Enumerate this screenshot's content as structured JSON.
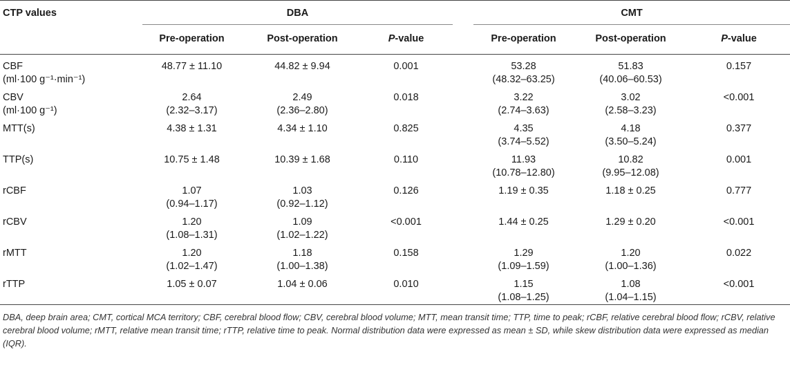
{
  "table": {
    "stub_header": "CTP values",
    "groups": [
      "DBA",
      "CMT"
    ],
    "subheaders": {
      "pre": "Pre-operation",
      "post": "Post-operation",
      "p_italic": "P",
      "p_rest": "-value"
    },
    "rows": [
      {
        "label": "CBF",
        "label2": "(ml·100 g⁻¹·min⁻¹)",
        "dba_pre": "48.77 ± 11.10",
        "dba_pre2": "",
        "dba_post": "44.82 ± 9.94",
        "dba_post2": "",
        "dba_p": "0.001",
        "cmt_pre": "53.28",
        "cmt_pre2": "(48.32–63.25)",
        "cmt_post": "51.83",
        "cmt_post2": "(40.06–60.53)",
        "cmt_p": "0.157"
      },
      {
        "label": "CBV",
        "label2": "(ml·100 g⁻¹)",
        "dba_pre": "2.64",
        "dba_pre2": "(2.32–3.17)",
        "dba_post": "2.49",
        "dba_post2": "(2.36–2.80)",
        "dba_p": "0.018",
        "cmt_pre": "3.22",
        "cmt_pre2": "(2.74–3.63)",
        "cmt_post": "3.02",
        "cmt_post2": "(2.58–3.23)",
        "cmt_p": "<0.001"
      },
      {
        "label": "MTT(s)",
        "label2": "",
        "dba_pre": "4.38 ± 1.31",
        "dba_pre2": "",
        "dba_post": "4.34 ± 1.10",
        "dba_post2": "",
        "dba_p": "0.825",
        "cmt_pre": "4.35",
        "cmt_pre2": "(3.74–5.52)",
        "cmt_post": "4.18",
        "cmt_post2": "(3.50–5.24)",
        "cmt_p": "0.377"
      },
      {
        "label": "TTP(s)",
        "label2": "",
        "dba_pre": "10.75 ± 1.48",
        "dba_pre2": "",
        "dba_post": "10.39 ± 1.68",
        "dba_post2": "",
        "dba_p": "0.110",
        "cmt_pre": "11.93",
        "cmt_pre2": "(10.78–12.80)",
        "cmt_post": "10.82",
        "cmt_post2": "(9.95–12.08)",
        "cmt_p": "0.001"
      },
      {
        "label": "rCBF",
        "label2": "",
        "dba_pre": "1.07",
        "dba_pre2": "(0.94–1.17)",
        "dba_post": "1.03",
        "dba_post2": "(0.92–1.12)",
        "dba_p": "0.126",
        "cmt_pre": "1.19 ± 0.35",
        "cmt_pre2": "",
        "cmt_post": "1.18 ± 0.25",
        "cmt_post2": "",
        "cmt_p": "0.777"
      },
      {
        "label": "rCBV",
        "label2": "",
        "dba_pre": "1.20",
        "dba_pre2": "(1.08–1.31)",
        "dba_post": "1.09",
        "dba_post2": "(1.02–1.22)",
        "dba_p": "<0.001",
        "cmt_pre": "1.44 ± 0.25",
        "cmt_pre2": "",
        "cmt_post": "1.29 ± 0.20",
        "cmt_post2": "",
        "cmt_p": "<0.001"
      },
      {
        "label": "rMTT",
        "label2": "",
        "dba_pre": "1.20",
        "dba_pre2": "(1.02–1.47)",
        "dba_post": "1.18",
        "dba_post2": "(1.00–1.38)",
        "dba_p": "0.158",
        "cmt_pre": "1.29",
        "cmt_pre2": "(1.09–1.59)",
        "cmt_post": "1.20",
        "cmt_post2": "(1.00–1.36)",
        "cmt_p": "0.022"
      },
      {
        "label": "rTTP",
        "label2": "",
        "dba_pre": "1.05 ± 0.07",
        "dba_pre2": "",
        "dba_post": "1.04 ± 0.06",
        "dba_post2": "",
        "dba_p": "0.010",
        "cmt_pre": "1.15",
        "cmt_pre2": "(1.08–1.25)",
        "cmt_post": "1.08",
        "cmt_post2": "(1.04–1.15)",
        "cmt_p": "<0.001"
      }
    ],
    "footnote": "DBA, deep brain area; CMT, cortical MCA territory; CBF, cerebral blood flow; CBV, cerebral blood volume; MTT, mean transit time; TTP, time to peak; rCBF, relative cerebral blood flow; rCBV, relative cerebral blood volume; rMTT, relative mean transit time; rTTP, relative time to peak. Normal distribution data were expressed as mean ± SD, while skew distribution data were expressed as median (IQR)."
  }
}
